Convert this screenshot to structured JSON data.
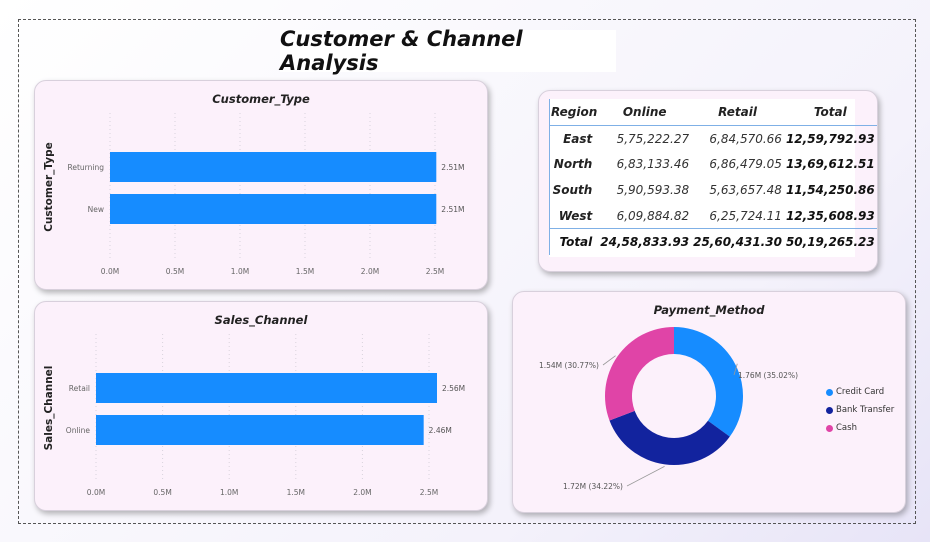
{
  "page_title": "Customer & Channel Analysis",
  "chart_data": [
    {
      "type": "bar",
      "orientation": "horizontal",
      "title": "Customer_Type",
      "ylabel": "Customer_Type",
      "categories": [
        "Returning",
        "New"
      ],
      "values": [
        2.51,
        2.51
      ],
      "data_labels": [
        "2.51M",
        "2.51M"
      ],
      "xticks": [
        "0.0M",
        "0.5M",
        "1.0M",
        "1.5M",
        "2.0M",
        "2.5M"
      ],
      "xlim": [
        0,
        2.5
      ],
      "unit": "M",
      "color": "#168cff"
    },
    {
      "type": "bar",
      "orientation": "horizontal",
      "title": "Sales_Channel",
      "ylabel": "Sales_Channel",
      "categories": [
        "Retail",
        "Online"
      ],
      "values": [
        2.56,
        2.46
      ],
      "data_labels": [
        "2.56M",
        "2.46M"
      ],
      "xticks": [
        "0.0M",
        "0.5M",
        "1.0M",
        "1.5M",
        "2.0M",
        "2.5M"
      ],
      "xlim": [
        0,
        2.5
      ],
      "unit": "M",
      "color": "#168cff"
    },
    {
      "type": "pie",
      "donut": true,
      "title": "Payment_Method",
      "slices": [
        {
          "name": "Credit Card",
          "value": 35.02,
          "label": "1.76M (35.02%)",
          "color": "#168cff"
        },
        {
          "name": "Bank Transfer",
          "value": 34.22,
          "label": "1.72M (34.22%)",
          "color": "#12239e"
        },
        {
          "name": "Cash",
          "value": 30.77,
          "label": "1.54M (30.77%)",
          "color": "#e044a7"
        }
      ],
      "legend": [
        "Credit Card",
        "Bank Transfer",
        "Cash"
      ]
    },
    {
      "type": "table",
      "columns": [
        "Region",
        "Online",
        "Retail",
        "Total"
      ],
      "rows": [
        [
          "East",
          "5,75,222.27",
          "6,84,570.66",
          "12,59,792.93"
        ],
        [
          "North",
          "6,83,133.46",
          "6,86,479.05",
          "13,69,612.51"
        ],
        [
          "South",
          "5,90,593.38",
          "5,63,657.48",
          "11,54,250.86"
        ],
        [
          "West",
          "6,09,884.82",
          "6,25,724.11",
          "12,35,608.93"
        ]
      ],
      "total_row": [
        "Total",
        "24,58,833.93",
        "25,60,431.30",
        "50,19,265.23"
      ]
    }
  ]
}
